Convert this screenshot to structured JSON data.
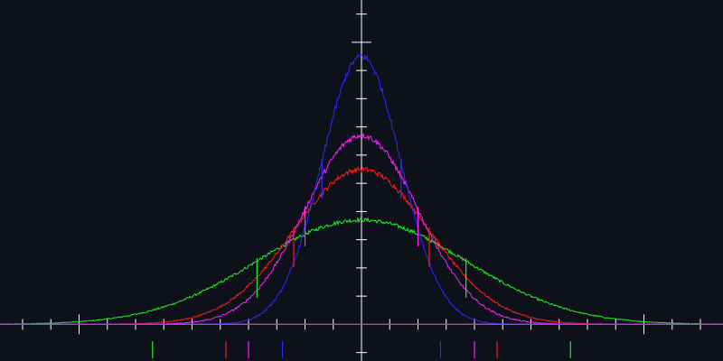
{
  "background_color": "#0e111a",
  "axis_color": "#ffffff",
  "chart_data": {
    "type": "line",
    "title": "",
    "xlabel": "",
    "ylabel": "",
    "legend": "none",
    "grid": false,
    "xlim": [
      -12.8,
      12.8
    ],
    "ylim": [
      -1.3,
      11.5
    ],
    "x_ticks": {
      "minor_step": 1,
      "major_step": 10
    },
    "y_ticks": {
      "minor_step": 1,
      "major_step": 10
    },
    "baseline_color": "#cc33cc",
    "series": [
      {
        "color": "#2a2aff",
        "mean": 0,
        "sigma": 1.4,
        "peak": 9.5,
        "sigma_markers": [
          1,
          2
        ],
        "noise": 0.12
      },
      {
        "color": "#ff22ff",
        "mean": 0,
        "sigma": 2.0,
        "peak": 6.7,
        "sigma_markers": [
          1,
          2
        ],
        "noise": 0.1
      },
      {
        "color": "#ff1a1a",
        "mean": 0,
        "sigma": 2.4,
        "peak": 5.5,
        "sigma_markers": [
          1,
          2
        ],
        "noise": 0.09
      },
      {
        "color": "#22ee22",
        "mean": 0,
        "sigma": 3.7,
        "peak": 3.7,
        "sigma_markers": [
          1,
          2
        ],
        "noise": 0.07
      }
    ]
  }
}
